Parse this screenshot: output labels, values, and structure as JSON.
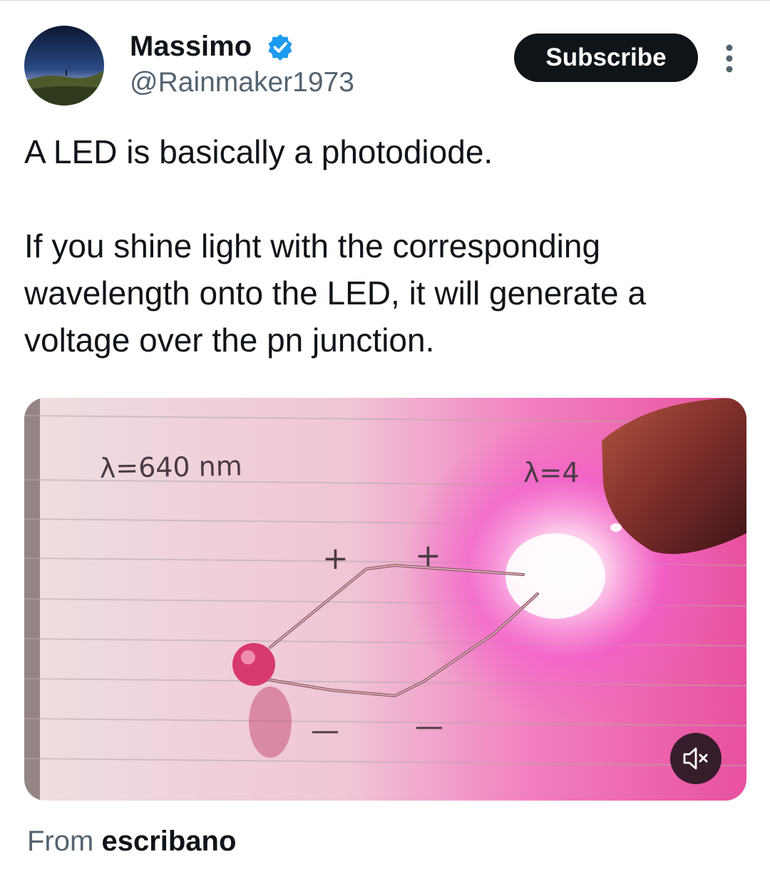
{
  "post": {
    "author_name": "Massimo",
    "author_handle": "@Rainmaker1973",
    "subscribe_label": "Subscribe",
    "text": "A LED is basically a photodiode.\n\nIf you shine light with the corresponding wavelength onto the LED, it will generate a voltage over the pn junction.",
    "media": {
      "label_left": "λ=640 nm",
      "label_right": "λ=4",
      "plus_sign": "+",
      "minus_sign": "—"
    },
    "source_prefix": "From",
    "source_name": "escribano"
  },
  "icons": {
    "verified": "verified-badge-icon",
    "more": "more-vertical-icon",
    "mute": "speaker-muted-icon"
  },
  "colors": {
    "verified": "#1d9bf0",
    "subscribe_bg": "#0f1419",
    "secondary_text": "#536471"
  }
}
